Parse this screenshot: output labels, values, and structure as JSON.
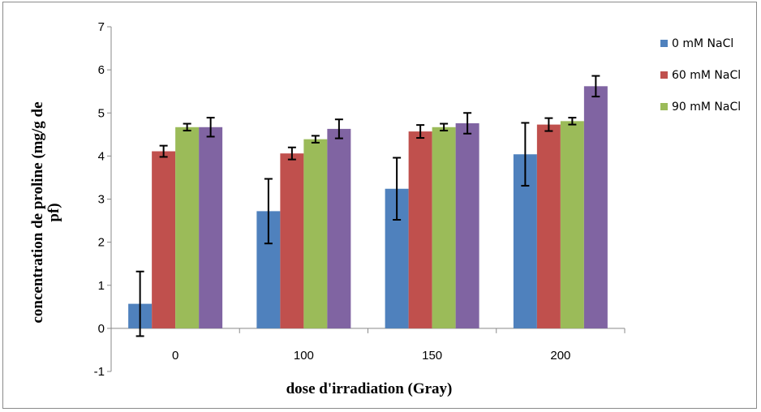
{
  "chart_data": {
    "type": "bar",
    "title": "",
    "xlabel": "dose d'irradiation (Gray)",
    "ylabel_line1": "concentration de proline (mg/g de",
    "ylabel_line2": "pf)",
    "categories": [
      "0",
      "100",
      "150",
      "200"
    ],
    "ylim": [
      -1,
      7
    ],
    "yticks": [
      -1,
      0,
      1,
      2,
      3,
      4,
      5,
      6,
      7
    ],
    "grid": false,
    "legend_position": "right",
    "series": [
      {
        "name": "0 mM NaCl",
        "color": "#4f81bd",
        "values": [
          0.57,
          2.72,
          3.24,
          4.04
        ],
        "errors": [
          0.75,
          0.75,
          0.72,
          0.73
        ]
      },
      {
        "name": "60 mM NaCl",
        "color": "#c0504d",
        "values": [
          4.11,
          4.06,
          4.57,
          4.73
        ],
        "errors": [
          0.13,
          0.14,
          0.15,
          0.15
        ]
      },
      {
        "name": "90 mM NaCl",
        "color": "#9bbb59",
        "values": [
          4.67,
          4.39,
          4.67,
          4.81
        ],
        "errors": [
          0.08,
          0.08,
          0.08,
          0.08
        ]
      },
      {
        "name": "",
        "color": "#8064a2",
        "values": [
          4.67,
          4.63,
          4.76,
          5.62
        ],
        "errors": [
          0.22,
          0.22,
          0.24,
          0.24
        ]
      }
    ]
  }
}
